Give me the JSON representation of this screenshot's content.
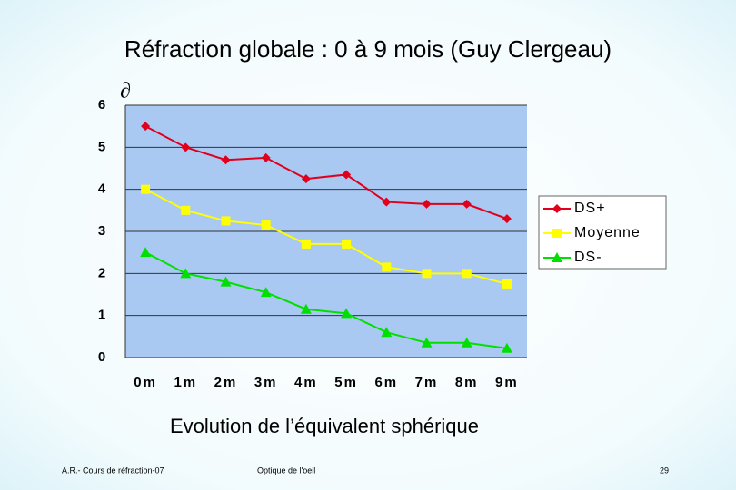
{
  "chart_data": {
    "type": "line",
    "title": "Réfraction globale : 0 à 9 mois (Guy Clergeau)",
    "y_symbol": "∂",
    "subtitle": "Evolution de l’équivalent sphérique",
    "categories": [
      "0m",
      "1m",
      "2m",
      "3m",
      "4m",
      "5m",
      "6m",
      "7m",
      "8m",
      "9m"
    ],
    "series": [
      {
        "name": "DS+",
        "color": "#e0001b",
        "marker": "diamond",
        "values": [
          5.5,
          5.0,
          4.7,
          4.75,
          4.25,
          4.35,
          3.7,
          3.65,
          3.65,
          3.3
        ]
      },
      {
        "name": "Moyenne",
        "color": "#ffff00",
        "marker": "square",
        "values": [
          4.0,
          3.5,
          3.25,
          3.15,
          2.7,
          2.7,
          2.15,
          2.0,
          2.0,
          1.75
        ]
      },
      {
        "name": "DS-",
        "color": "#00e000",
        "marker": "triangle",
        "values": [
          2.5,
          2.0,
          1.8,
          1.55,
          1.15,
          1.05,
          0.6,
          0.35,
          0.35,
          0.22
        ]
      }
    ],
    "ylim": [
      0,
      6
    ],
    "yticks": [
      0,
      1,
      2,
      3,
      4,
      5,
      6
    ],
    "grid": true,
    "legend": "right"
  },
  "footer": {
    "left": "A.R.- Cours de réfraction-07",
    "center": "Optique de l'oeil",
    "page": "29"
  }
}
